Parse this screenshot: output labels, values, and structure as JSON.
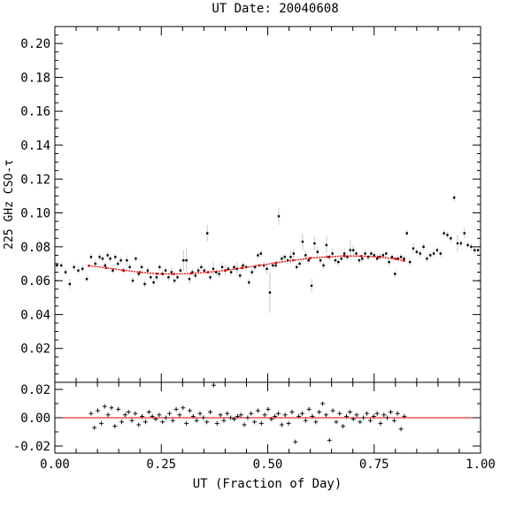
{
  "chart_data": [
    {
      "type": "scatter",
      "title": "UT Date: 20040608",
      "ylabel": "225 GHz CSO-τ",
      "xlim": [
        0,
        1
      ],
      "ylim": [
        0,
        0.21
      ],
      "yticks": [
        "0.02",
        "0.04",
        "0.06",
        "0.08",
        "0.10",
        "0.12",
        "0.14",
        "0.16",
        "0.18",
        "0.20"
      ],
      "grid": false,
      "colors": {
        "points": "#000000",
        "errorbars": "#c8c8c8",
        "fit": "#e00000"
      },
      "series": [
        {
          "marker": "dot-with-errorbar",
          "x": [
            0.005,
            0.015,
            0.025,
            0.035,
            0.045,
            0.055,
            0.065,
            0.075,
            0.085,
            0.095,
            0.105,
            0.112,
            0.118,
            0.124,
            0.13,
            0.136,
            0.142,
            0.148,
            0.155,
            0.162,
            0.169,
            0.176,
            0.183,
            0.19,
            0.197,
            0.204,
            0.211,
            0.218,
            0.225,
            0.232,
            0.239,
            0.246,
            0.253,
            0.26,
            0.267,
            0.274,
            0.281,
            0.288,
            0.295,
            0.302,
            0.309,
            0.316,
            0.323,
            0.33,
            0.337,
            0.344,
            0.351,
            0.358,
            0.365,
            0.372,
            0.379,
            0.386,
            0.393,
            0.4,
            0.407,
            0.414,
            0.421,
            0.428,
            0.435,
            0.442,
            0.449,
            0.456,
            0.463,
            0.47,
            0.477,
            0.484,
            0.491,
            0.498,
            0.505,
            0.512,
            0.519,
            0.526,
            0.533,
            0.54,
            0.547,
            0.554,
            0.561,
            0.568,
            0.575,
            0.582,
            0.589,
            0.596,
            0.603,
            0.61,
            0.617,
            0.624,
            0.631,
            0.638,
            0.645,
            0.652,
            0.659,
            0.666,
            0.673,
            0.68,
            0.687,
            0.694,
            0.701,
            0.708,
            0.715,
            0.722,
            0.729,
            0.736,
            0.743,
            0.75,
            0.757,
            0.764,
            0.771,
            0.778,
            0.785,
            0.792,
            0.799,
            0.806,
            0.813,
            0.82,
            0.827,
            0.834,
            0.842,
            0.85,
            0.858,
            0.866,
            0.874,
            0.882,
            0.89,
            0.898,
            0.906,
            0.914,
            0.922,
            0.93,
            0.938,
            0.946,
            0.954,
            0.962,
            0.97,
            0.978,
            0.986,
            0.994
          ],
          "y": [
            0.069,
            0.069,
            0.065,
            0.058,
            0.068,
            0.066,
            0.067,
            0.061,
            0.074,
            0.07,
            0.074,
            0.073,
            0.069,
            0.075,
            0.073,
            0.066,
            0.074,
            0.07,
            0.072,
            0.066,
            0.072,
            0.068,
            0.06,
            0.073,
            0.064,
            0.068,
            0.058,
            0.066,
            0.062,
            0.059,
            0.062,
            0.068,
            0.064,
            0.066,
            0.062,
            0.065,
            0.06,
            0.062,
            0.066,
            0.072,
            0.072,
            0.061,
            0.065,
            0.063,
            0.066,
            0.068,
            0.066,
            0.088,
            0.062,
            0.067,
            0.065,
            0.064,
            0.068,
            0.066,
            0.067,
            0.065,
            0.068,
            0.067,
            0.063,
            0.069,
            0.068,
            0.059,
            0.065,
            0.068,
            0.075,
            0.076,
            0.069,
            0.067,
            0.053,
            0.069,
            0.069,
            0.098,
            0.073,
            0.074,
            0.072,
            0.074,
            0.076,
            0.068,
            0.07,
            0.083,
            0.075,
            0.072,
            0.057,
            0.082,
            0.077,
            0.072,
            0.069,
            0.081,
            0.074,
            0.076,
            0.072,
            0.071,
            0.073,
            0.076,
            0.074,
            0.078,
            0.078,
            0.076,
            0.072,
            0.073,
            0.076,
            0.074,
            0.076,
            0.075,
            0.073,
            0.074,
            0.075,
            0.076,
            0.071,
            0.074,
            0.064,
            0.073,
            0.074,
            0.073,
            0.088,
            0.071,
            0.079,
            0.077,
            0.076,
            0.08,
            0.073,
            0.075,
            0.076,
            0.078,
            0.076,
            0.088,
            0.087,
            0.085,
            0.109,
            0.082,
            0.082,
            0.088,
            0.081,
            0.08,
            0.078,
            0.078
          ],
          "err": [
            0.002,
            0.002,
            0.002,
            0.003,
            0.002,
            0.002,
            0.002,
            0.002,
            0.002,
            0.002,
            0.002,
            0.002,
            0.002,
            0.002,
            0.002,
            0.002,
            0.002,
            0.002,
            0.002,
            0.002,
            0.003,
            0.002,
            0.002,
            0.002,
            0.002,
            0.002,
            0.002,
            0.002,
            0.002,
            0.002,
            0.002,
            0.002,
            0.002,
            0.002,
            0.002,
            0.003,
            0.002,
            0.002,
            0.002,
            0.006,
            0.007,
            0.003,
            0.002,
            0.002,
            0.002,
            0.002,
            0.002,
            0.005,
            0.002,
            0.004,
            0.002,
            0.002,
            0.003,
            0.003,
            0.002,
            0.002,
            0.002,
            0.004,
            0.002,
            0.002,
            0.002,
            0.002,
            0.002,
            0.002,
            0.002,
            0.002,
            0.002,
            0.003,
            0.012,
            0.002,
            0.002,
            0.005,
            0.002,
            0.002,
            0.002,
            0.004,
            0.003,
            0.002,
            0.002,
            0.005,
            0.003,
            0.002,
            0.004,
            0.004,
            0.003,
            0.002,
            0.002,
            0.005,
            0.002,
            0.003,
            0.002,
            0.002,
            0.002,
            0.003,
            0.002,
            0.006,
            0.003,
            0.002,
            0.002,
            0.002,
            0.002,
            0.002,
            0.002,
            0.002,
            0.002,
            0.002,
            0.002,
            0.002,
            0.002,
            0.002,
            0.002,
            0.002,
            0.002,
            0.002,
            0.002,
            0.002,
            0.003,
            0.002,
            0.002,
            0.002,
            0.002,
            0.002,
            0.002,
            0.002,
            0.002,
            0.002,
            0.002,
            0.002,
            0.002,
            0.005,
            0.002,
            0.003,
            0.002,
            0.002,
            0.002,
            0.002
          ]
        },
        {
          "marker": "line-fit",
          "x": [
            0.08,
            0.12,
            0.16,
            0.2,
            0.24,
            0.28,
            0.32,
            0.36,
            0.4,
            0.44,
            0.48,
            0.52,
            0.56,
            0.6,
            0.64,
            0.68,
            0.72,
            0.76,
            0.8,
            0.82
          ],
          "y": [
            0.0688,
            0.0676,
            0.0662,
            0.065,
            0.0641,
            0.0639,
            0.0643,
            0.065,
            0.0661,
            0.0675,
            0.069,
            0.0706,
            0.072,
            0.0733,
            0.0741,
            0.0746,
            0.0745,
            0.074,
            0.0729,
            0.0718
          ]
        }
      ]
    },
    {
      "type": "scatter",
      "xlabel": "UT (Fraction of Day)",
      "xlim": [
        0,
        1
      ],
      "ylim": [
        -0.025,
        0.025
      ],
      "xticks": [
        "0.00",
        "0.25",
        "0.50",
        "0.75",
        "1.00"
      ],
      "yticks": [
        "-0.02",
        "0.00",
        "0.02"
      ],
      "grid": false,
      "colors": {
        "points": "#000000",
        "zero_line": "#e00000"
      },
      "series": [
        {
          "marker": "plus",
          "x": [
            0.085,
            0.093,
            0.101,
            0.109,
            0.117,
            0.125,
            0.133,
            0.141,
            0.149,
            0.157,
            0.165,
            0.173,
            0.181,
            0.189,
            0.197,
            0.205,
            0.213,
            0.221,
            0.229,
            0.237,
            0.245,
            0.253,
            0.261,
            0.269,
            0.277,
            0.285,
            0.293,
            0.301,
            0.309,
            0.317,
            0.325,
            0.333,
            0.341,
            0.349,
            0.357,
            0.365,
            0.373,
            0.381,
            0.389,
            0.397,
            0.405,
            0.413,
            0.421,
            0.429,
            0.437,
            0.445,
            0.453,
            0.461,
            0.469,
            0.477,
            0.485,
            0.493,
            0.501,
            0.509,
            0.517,
            0.525,
            0.533,
            0.541,
            0.549,
            0.557,
            0.565,
            0.573,
            0.581,
            0.589,
            0.597,
            0.605,
            0.613,
            0.621,
            0.629,
            0.637,
            0.645,
            0.653,
            0.661,
            0.669,
            0.677,
            0.685,
            0.693,
            0.701,
            0.709,
            0.717,
            0.725,
            0.733,
            0.741,
            0.749,
            0.757,
            0.765,
            0.773,
            0.781,
            0.789,
            0.797,
            0.805,
            0.813,
            0.821
          ],
          "y": [
            0.003,
            -0.007,
            0.005,
            -0.004,
            0.008,
            0.002,
            0.007,
            -0.006,
            0.006,
            -0.003,
            0.002,
            0.004,
            -0.002,
            0.003,
            -0.005,
            0.001,
            -0.003,
            0.004,
            0.001,
            -0.001,
            0.002,
            -0.003,
            0.0,
            0.003,
            -0.002,
            0.006,
            0.002,
            0.007,
            -0.004,
            0.005,
            0.001,
            -0.002,
            0.003,
            0.0,
            -0.003,
            0.004,
            0.023,
            -0.004,
            0.002,
            -0.002,
            0.003,
            0.0,
            -0.001,
            0.001,
            0.002,
            -0.005,
            0.0,
            0.003,
            -0.003,
            0.005,
            -0.004,
            0.002,
            0.006,
            -0.001,
            0.001,
            0.003,
            -0.005,
            0.002,
            -0.004,
            0.004,
            -0.017,
            0.001,
            0.003,
            -0.002,
            0.006,
            0.001,
            -0.003,
            0.004,
            0.01,
            0.002,
            -0.016,
            0.005,
            -0.003,
            0.003,
            -0.006,
            0.001,
            0.004,
            -0.001,
            0.002,
            -0.003,
            0.0,
            0.003,
            -0.002,
            0.001,
            0.003,
            -0.004,
            0.002,
            0.0,
            0.004,
            -0.002,
            0.003,
            -0.008,
            0.001
          ]
        },
        {
          "marker": "zero-line",
          "x": [
            0,
            1
          ],
          "y": [
            0,
            0
          ]
        }
      ]
    }
  ]
}
